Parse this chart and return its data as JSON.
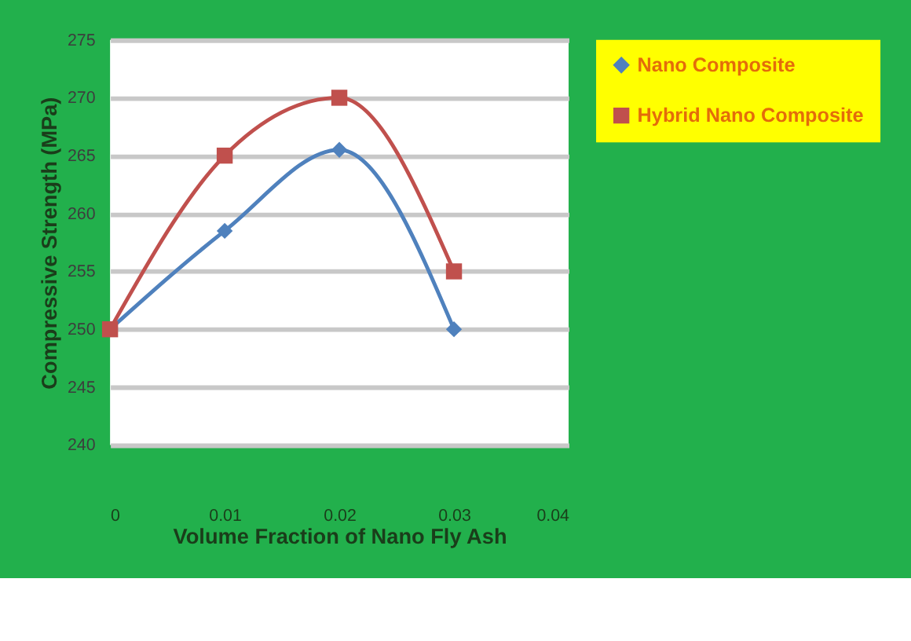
{
  "chart_data": {
    "type": "line",
    "xlabel": "Volume Fraction of  Nano  Fly  Ash",
    "ylabel": "Compressive Strength (MPa)",
    "x": [
      0,
      0.01,
      0.02,
      0.03
    ],
    "series": [
      {
        "name": "Nano Composite",
        "color": "#4f81bd",
        "marker": "diamond",
        "values": [
          250,
          258.5,
          265.5,
          250
        ]
      },
      {
        "name": "Hybrid Nano Composite",
        "color": "#c0504d",
        "marker": "square",
        "values": [
          250,
          265,
          270,
          255
        ]
      }
    ],
    "xlim": [
      0,
      0.04
    ],
    "xticks": [
      0,
      0.01,
      0.02,
      0.03,
      0.04
    ],
    "ylim": [
      240,
      275
    ],
    "yticks": [
      240,
      245,
      250,
      255,
      260,
      265,
      270,
      275
    ],
    "grid": "y",
    "legend": "right"
  }
}
